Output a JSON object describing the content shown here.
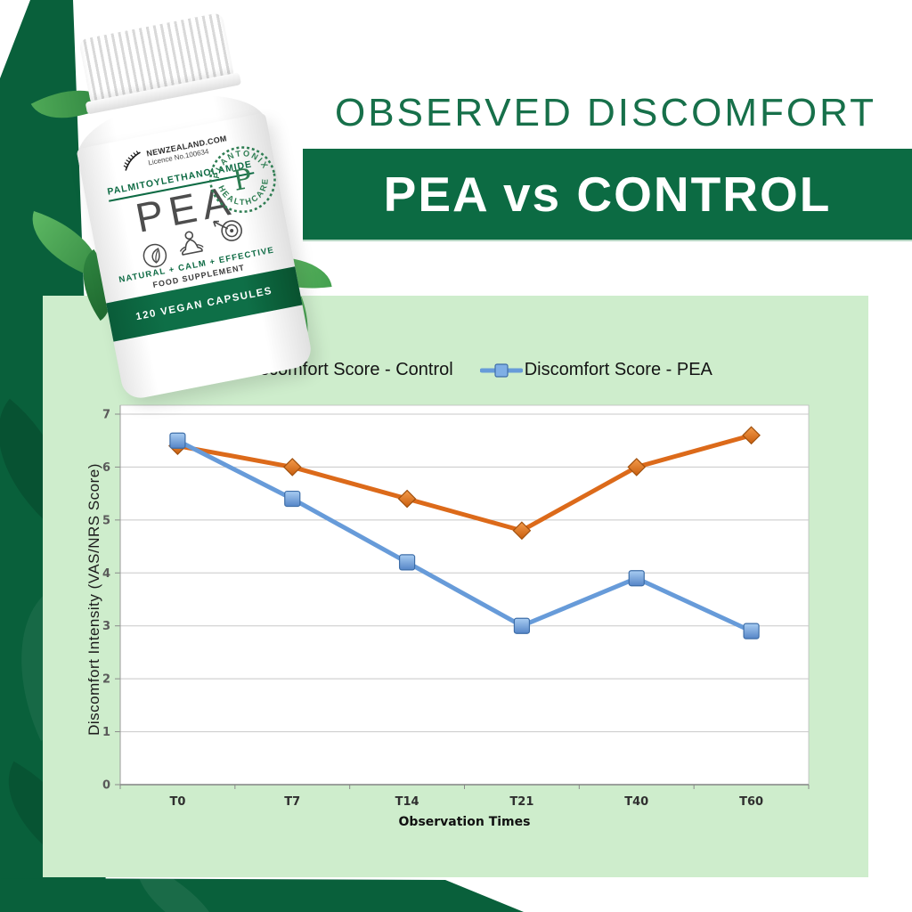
{
  "header": {
    "title": "OBSERVED DISCOMFORT",
    "banner": "PEA vs CONTROL"
  },
  "product": {
    "site": "NEWZEALAND.COM",
    "licence": "Licence No.100634",
    "compound": "PALMITOYLETHANOLAMIDE",
    "name": "PEA",
    "tagline": "NATURAL + CALM + EFFECTIVE",
    "supplement_label": "FOOD SUPPLEMENT",
    "capsules_label": "120 VEGAN CAPSULES",
    "stamp": {
      "top": "PLANTONIX",
      "bottom": "HEALTHCARE",
      "monogram": "P"
    },
    "icons": [
      "fern-icon",
      "leaf-icon",
      "meditation-icon",
      "target-icon"
    ]
  },
  "chart_data": {
    "type": "line",
    "categories": [
      "T0",
      "T7",
      "T14",
      "T21",
      "T40",
      "T60"
    ],
    "series": [
      {
        "name": "Discomfort Score - Control",
        "marker": "diamond",
        "color": "#DC6A1A",
        "values": [
          6.4,
          6.0,
          5.4,
          4.8,
          6.0,
          6.6
        ]
      },
      {
        "name": "Discomfort Score - PEA",
        "marker": "square",
        "color": "#679BD9",
        "values": [
          6.5,
          5.4,
          4.2,
          3.0,
          3.9,
          2.9
        ]
      }
    ],
    "xlabel": "Observation Times",
    "ylabel": "Discomfort Intensity (VAS/NRS Score)",
    "ylim": [
      0,
      7
    ],
    "yticks": [
      0,
      1,
      2,
      3,
      4,
      5,
      6,
      7
    ],
    "grid": true,
    "legend_position": "top"
  },
  "colors": {
    "dark_green": "#0C6B43",
    "deep_green": "#09603B",
    "panel_green": "#CEEDCC",
    "title_green": "#17704A",
    "control_orange": "#DC6A1A",
    "pea_blue": "#679BD9",
    "banner_text": "#FFFFFF"
  }
}
